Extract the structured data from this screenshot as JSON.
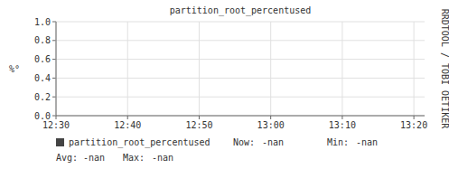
{
  "chart_data": {
    "type": "line",
    "title": "partition_root_percentused",
    "y_label": "%°",
    "categories": [
      "12:30",
      "12:40",
      "12:50",
      "13:00",
      "13:10",
      "13:20"
    ],
    "series": [
      {
        "name": "partition_root_percentused",
        "color": "#444444",
        "values": [
          null,
          null,
          null,
          null,
          null,
          null
        ]
      }
    ],
    "ylim": [
      0.0,
      1.0
    ],
    "yticks": [
      {
        "value": 0.0,
        "label": "0.0"
      },
      0.2,
      0.4,
      0.6,
      0.8,
      {
        "value": 1.0,
        "label": "1.0"
      }
    ],
    "grid": true,
    "legend": "bottom",
    "annotations": [
      "Now:",
      "-nan",
      "Min:",
      "-nan",
      "Avg:",
      "-nan",
      "Max:",
      "-nan",
      "RRDTOOL / TOBI OETIKER"
    ]
  }
}
